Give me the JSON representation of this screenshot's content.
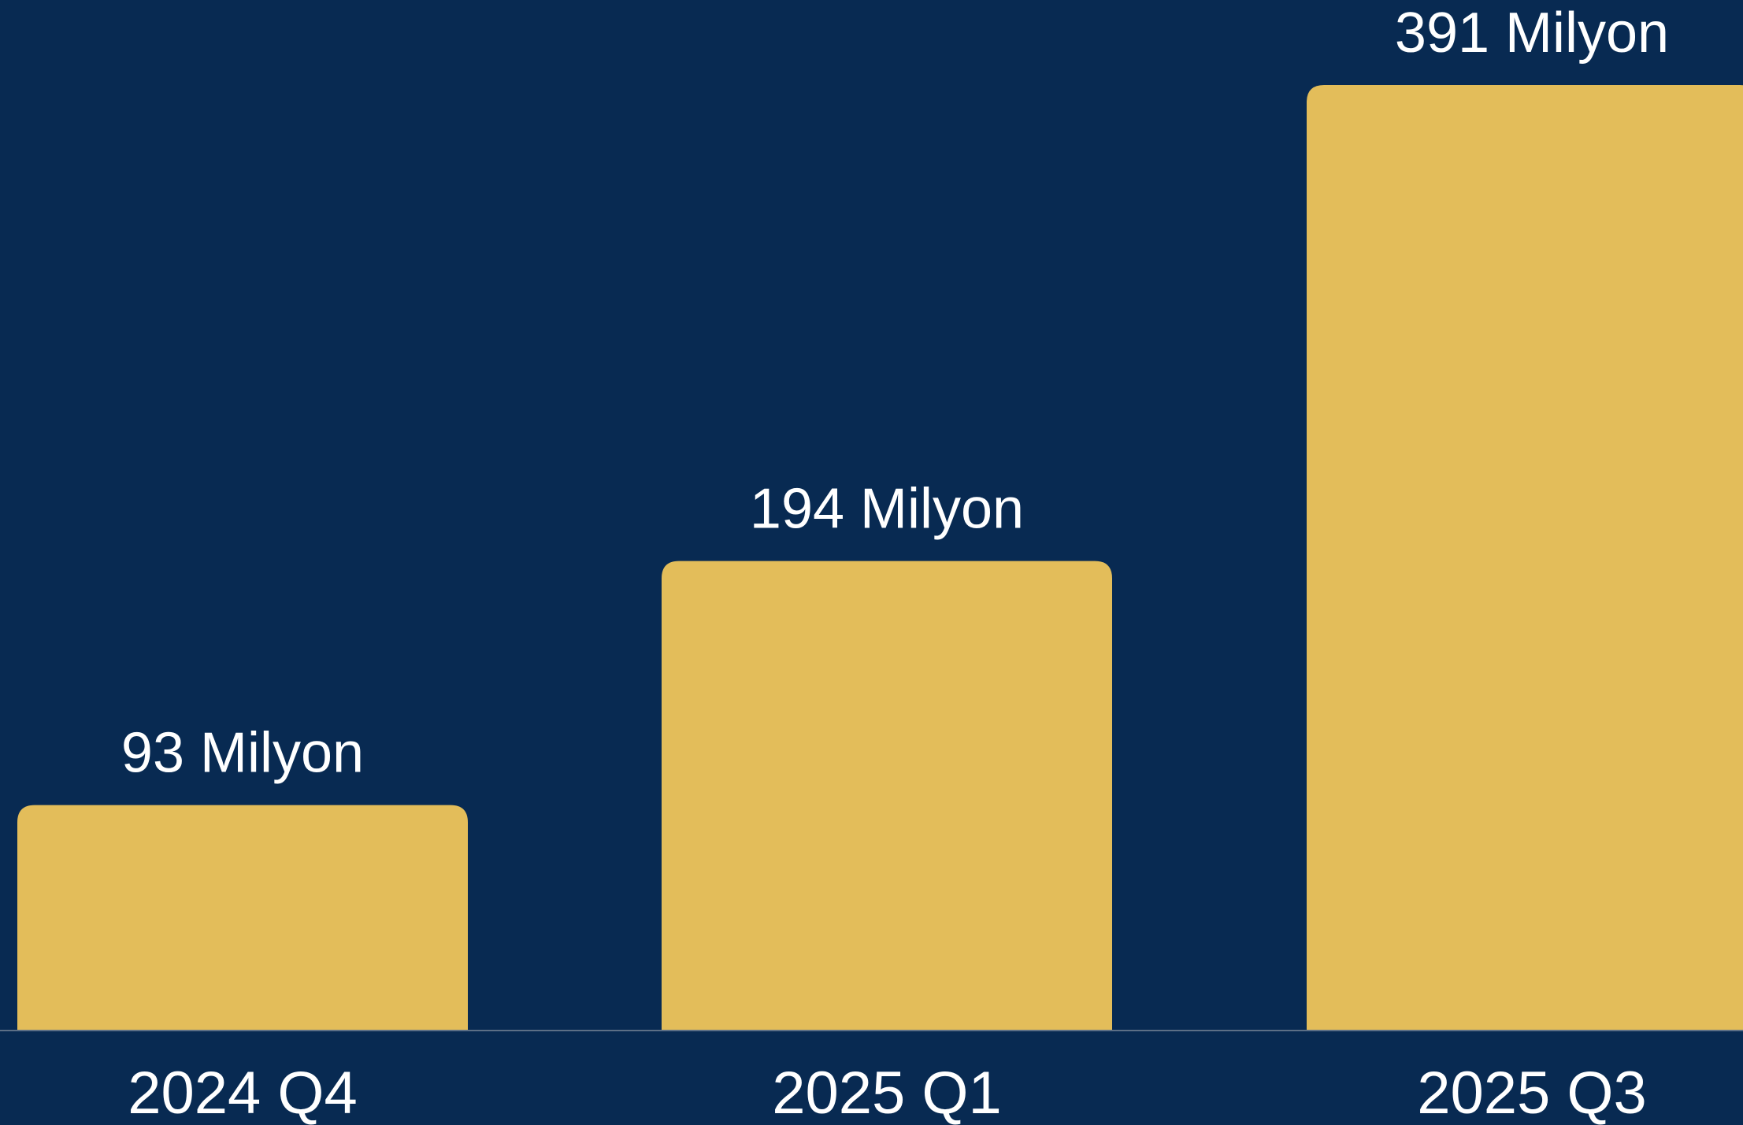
{
  "chart_data": {
    "type": "bar",
    "categories": [
      "2024 Q4",
      "2025 Q1",
      "2025 Q3"
    ],
    "values": [
      93,
      194,
      391
    ],
    "data_labels": [
      "93 Milyon",
      "194 Milyon",
      "391 Milyon"
    ],
    "title": "",
    "xlabel": "",
    "ylabel": "",
    "ylim": [
      0,
      391
    ],
    "grid": false,
    "legend": "none"
  },
  "colors": {
    "background": "#082a52",
    "bar": "#e3bd5a",
    "baseline": "#5c6f86",
    "text": "#ffffff"
  }
}
